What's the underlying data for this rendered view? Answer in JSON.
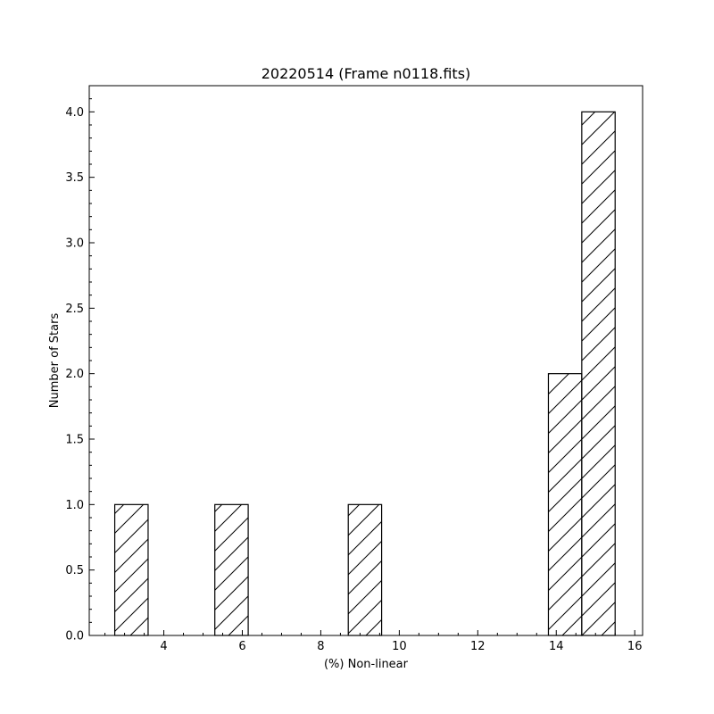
{
  "chart_data": {
    "type": "bar",
    "title": "20220514 (Frame n0118.fits)",
    "xlabel": "(%) Non-linear",
    "ylabel": "Number of Stars",
    "xlim": [
      2.1,
      16.2
    ],
    "ylim": [
      0,
      4.2
    ],
    "x_ticks": [
      4,
      6,
      8,
      10,
      12,
      14,
      16
    ],
    "y_ticks": [
      0.0,
      0.5,
      1.0,
      1.5,
      2.0,
      2.5,
      3.0,
      3.5,
      4.0
    ],
    "x_tick_labels": [
      "4",
      "6",
      "8",
      "10",
      "12",
      "14",
      "16"
    ],
    "y_tick_labels": [
      "0.0",
      "0.5",
      "1.0",
      "1.5",
      "2.0",
      "2.5",
      "3.0",
      "3.5",
      "4.0"
    ],
    "bins": [
      {
        "x0": 2.75,
        "x1": 3.6,
        "count": 1
      },
      {
        "x0": 5.3,
        "x1": 6.15,
        "count": 1
      },
      {
        "x0": 8.7,
        "x1": 9.55,
        "count": 1
      },
      {
        "x0": 13.8,
        "x1": 14.65,
        "count": 2
      },
      {
        "x0": 14.65,
        "x1": 15.5,
        "count": 4
      }
    ],
    "bar_fill": "#ffffff",
    "bar_edge": "#000000",
    "hatch": "/",
    "grid": false,
    "ticks_direction": "in"
  }
}
